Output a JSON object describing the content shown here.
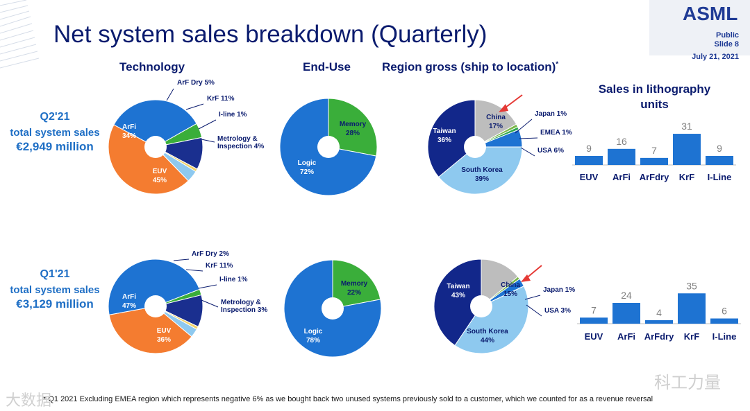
{
  "header": {
    "title": "Net system sales breakdown (Quarterly)",
    "logo": "ASML",
    "classification": "Public",
    "slide": "Slide 8",
    "date": "July 21, 2021"
  },
  "colors": {
    "title": "#0a1b6e",
    "accent": "#1f6fc5",
    "euv": "#f47c30",
    "arfi": "#1e73d2",
    "arf_dry": "#3aae3a",
    "krf": "#1a2f8f",
    "iline": "#f1d36b",
    "metrology": "#8ec9ef",
    "memory": "#3aae3a",
    "logic": "#1e73d2",
    "taiwan": "#12278a",
    "china": "#bdbdbd",
    "japan": "#7ab648",
    "emea": "#2fa84f",
    "usa": "#1e73d2",
    "south_korea": "#8ec9ef",
    "bar": "#1e73d2"
  },
  "sections": {
    "technology": "Technology",
    "end_use": "End-Use",
    "region": "Region gross (ship to location)",
    "region_mark": "*",
    "sales_units": [
      "Sales in lithography",
      "units"
    ]
  },
  "quarters": [
    {
      "q": "Q2'21",
      "label": "total system sales",
      "amount": "€2,949 million"
    },
    {
      "q": "Q1'21",
      "label": "total system sales",
      "amount": "€3,129 million"
    }
  ],
  "chart_data": [
    {
      "type": "pie",
      "title": "Technology Q2'21",
      "slices": [
        {
          "name": "EUV",
          "value": 45,
          "label": "EUV",
          "pct": "45%",
          "placement": "inside"
        },
        {
          "name": "ArFi",
          "value": 34,
          "label": "ArFi",
          "pct": "34%",
          "placement": "inside"
        },
        {
          "name": "ArF Dry",
          "value": 5,
          "label": "ArF Dry 5%",
          "placement": "outside"
        },
        {
          "name": "KrF",
          "value": 11,
          "label": "KrF 11%",
          "placement": "outside"
        },
        {
          "name": "I-line",
          "value": 1,
          "label": "I-line 1%",
          "placement": "outside"
        },
        {
          "name": "Metrology & Inspection",
          "value": 4,
          "label": "Metrology &",
          "label2": "Inspection 4%",
          "placement": "outside"
        }
      ]
    },
    {
      "type": "pie",
      "title": "End-Use Q2'21",
      "slices": [
        {
          "name": "Memory",
          "value": 28,
          "label": "Memory",
          "pct": "28%",
          "placement": "inside"
        },
        {
          "name": "Logic",
          "value": 72,
          "label": "Logic",
          "pct": "72%",
          "placement": "inside"
        }
      ]
    },
    {
      "type": "pie",
      "title": "Region Q2'21",
      "slices": [
        {
          "name": "China",
          "value": 17,
          "label": "China",
          "pct": "17%",
          "placement": "inside"
        },
        {
          "name": "Japan",
          "value": 1,
          "label": "Japan 1%",
          "placement": "outside"
        },
        {
          "name": "EMEA",
          "value": 1,
          "label": "EMEA 1%",
          "placement": "outside"
        },
        {
          "name": "USA",
          "value": 6,
          "label": "USA 6%",
          "placement": "outside"
        },
        {
          "name": "South Korea",
          "value": 39,
          "label": "South Korea",
          "pct": "39%",
          "placement": "inside"
        },
        {
          "name": "Taiwan",
          "value": 36,
          "label": "Taiwan",
          "pct": "36%",
          "placement": "inside"
        }
      ]
    },
    {
      "type": "bar",
      "title": "Sales in lithography units Q2'21",
      "categories": [
        "EUV",
        "ArFi",
        "ArFdry",
        "KrF",
        "I-Line"
      ],
      "values": [
        9,
        16,
        7,
        31,
        9
      ]
    },
    {
      "type": "pie",
      "title": "Technology Q1'21",
      "slices": [
        {
          "name": "EUV",
          "value": 36,
          "label": "EUV",
          "pct": "36%",
          "placement": "inside"
        },
        {
          "name": "ArFi",
          "value": 47,
          "label": "ArFi",
          "pct": "47%",
          "placement": "inside"
        },
        {
          "name": "ArF Dry",
          "value": 2,
          "label": "ArF Dry 2%",
          "placement": "outside"
        },
        {
          "name": "KrF",
          "value": 11,
          "label": "KrF 11%",
          "placement": "outside"
        },
        {
          "name": "I-line",
          "value": 1,
          "label": "I-line 1%",
          "placement": "outside"
        },
        {
          "name": "Metrology & Inspection",
          "value": 3,
          "label": "Metrology &",
          "label2": "Inspection 3%",
          "placement": "outside"
        }
      ]
    },
    {
      "type": "pie",
      "title": "End-Use Q1'21",
      "slices": [
        {
          "name": "Memory",
          "value": 22,
          "label": "Memory",
          "pct": "22%",
          "placement": "inside"
        },
        {
          "name": "Logic",
          "value": 78,
          "label": "Logic",
          "pct": "78%",
          "placement": "inside"
        }
      ]
    },
    {
      "type": "pie",
      "title": "Region Q1'21",
      "slices": [
        {
          "name": "China",
          "value": 15,
          "label": "China",
          "pct": "15%",
          "placement": "inside"
        },
        {
          "name": "Japan",
          "value": 1,
          "label": "Japan 1%",
          "placement": "outside"
        },
        {
          "name": "USA",
          "value": 3,
          "label": "USA 3%",
          "placement": "outside"
        },
        {
          "name": "South Korea",
          "value": 44,
          "label": "South Korea",
          "pct": "44%",
          "placement": "inside"
        },
        {
          "name": "Taiwan",
          "value": 43,
          "label": "Taiwan",
          "pct": "43%",
          "placement": "inside"
        }
      ]
    },
    {
      "type": "bar",
      "title": "Sales in lithography units Q1'21",
      "categories": [
        "EUV",
        "ArFi",
        "ArFdry",
        "KrF",
        "I-Line"
      ],
      "values": [
        7,
        24,
        4,
        35,
        6
      ]
    }
  ],
  "footnote": "* Q1 2021 Excluding EMEA region which represents negative 6% as we bought back two unused systems previously sold to a customer, which we counted for as a revenue reversal",
  "watermark": {
    "left": "大数据",
    "right": "科工力量"
  }
}
